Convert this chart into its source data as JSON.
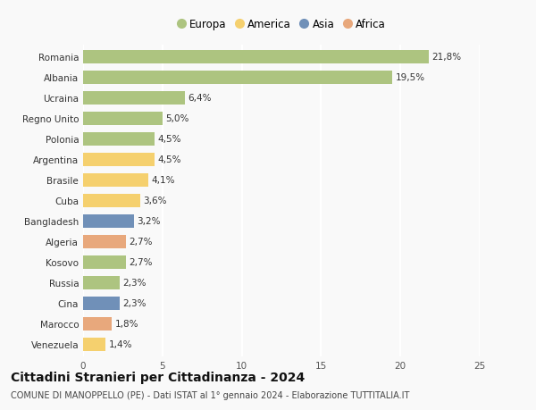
{
  "categories": [
    "Romania",
    "Albania",
    "Ucraina",
    "Regno Unito",
    "Polonia",
    "Argentina",
    "Brasile",
    "Cuba",
    "Bangladesh",
    "Algeria",
    "Kosovo",
    "Russia",
    "Cina",
    "Marocco",
    "Venezuela"
  ],
  "values": [
    21.8,
    19.5,
    6.4,
    5.0,
    4.5,
    4.5,
    4.1,
    3.6,
    3.2,
    2.7,
    2.7,
    2.3,
    2.3,
    1.8,
    1.4
  ],
  "labels": [
    "21,8%",
    "19,5%",
    "6,4%",
    "5,0%",
    "4,5%",
    "4,5%",
    "4,1%",
    "3,6%",
    "3,2%",
    "2,7%",
    "2,7%",
    "2,3%",
    "2,3%",
    "1,8%",
    "1,4%"
  ],
  "continents": [
    "Europa",
    "Europa",
    "Europa",
    "Europa",
    "Europa",
    "America",
    "America",
    "America",
    "Asia",
    "Africa",
    "Europa",
    "Europa",
    "Asia",
    "Africa",
    "America"
  ],
  "colors": {
    "Europa": "#adc480",
    "America": "#f5d06e",
    "Asia": "#7090b8",
    "Africa": "#e8a87c"
  },
  "xlim": [
    0,
    25
  ],
  "xticks": [
    0,
    5,
    10,
    15,
    20,
    25
  ],
  "title": "Cittadini Stranieri per Cittadinanza - 2024",
  "subtitle": "COMUNE DI MANOPPELLO (PE) - Dati ISTAT al 1° gennaio 2024 - Elaborazione TUTTITALIA.IT",
  "bg_color": "#f9f9f9",
  "grid_color": "#ffffff",
  "bar_height": 0.62,
  "label_fontsize": 7.5,
  "ytick_fontsize": 7.5,
  "xtick_fontsize": 7.5,
  "title_fontsize": 10,
  "subtitle_fontsize": 7,
  "legend_fontsize": 8.5
}
